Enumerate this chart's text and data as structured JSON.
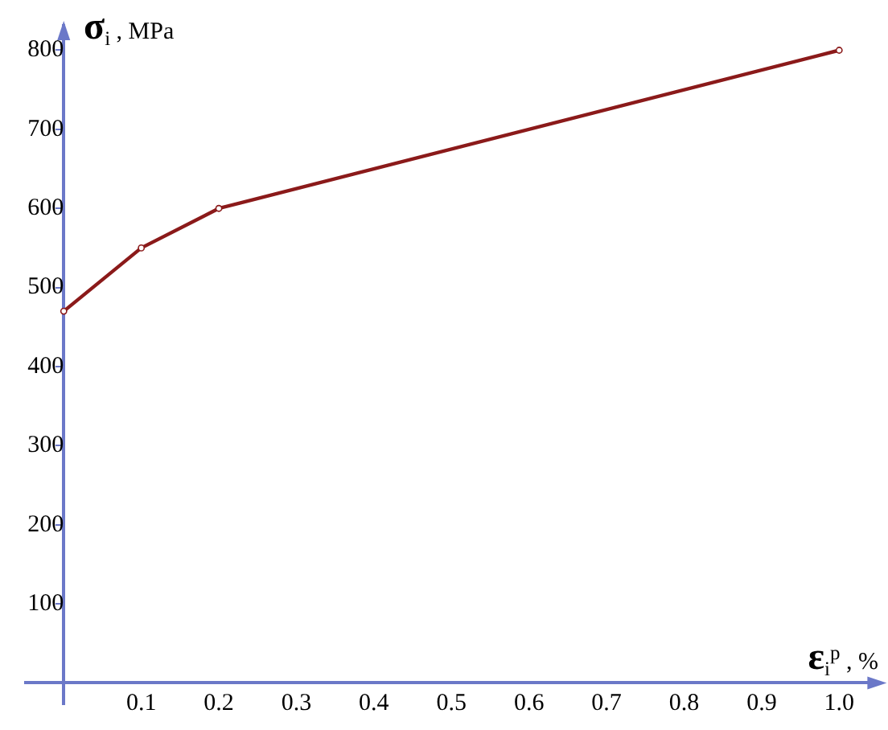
{
  "chart_data": {
    "type": "line",
    "xlabel": "ε$_{i}$$^{p}$ , %",
    "ylabel": "σ$_{i}$ , MPa",
    "x": [
      0,
      0.1,
      0.2,
      1.0
    ],
    "series": [
      {
        "color": "#8b1a1a",
        "values": [
          470,
          550,
          600,
          800
        ]
      }
    ],
    "xlim": [
      -0.049,
      1.053
    ],
    "ylim": [
      -27,
      831
    ],
    "xticks": [
      0.1,
      0.2,
      0.3,
      0.4,
      0.5,
      0.6,
      0.7,
      0.8,
      0.9,
      {
        "value": 1.0,
        "label": "1.0"
      }
    ],
    "yticks": [
      100,
      200,
      300,
      400,
      500,
      600,
      700,
      800
    ],
    "marker": "circle",
    "line_style": "solid",
    "legend": false
  }
}
